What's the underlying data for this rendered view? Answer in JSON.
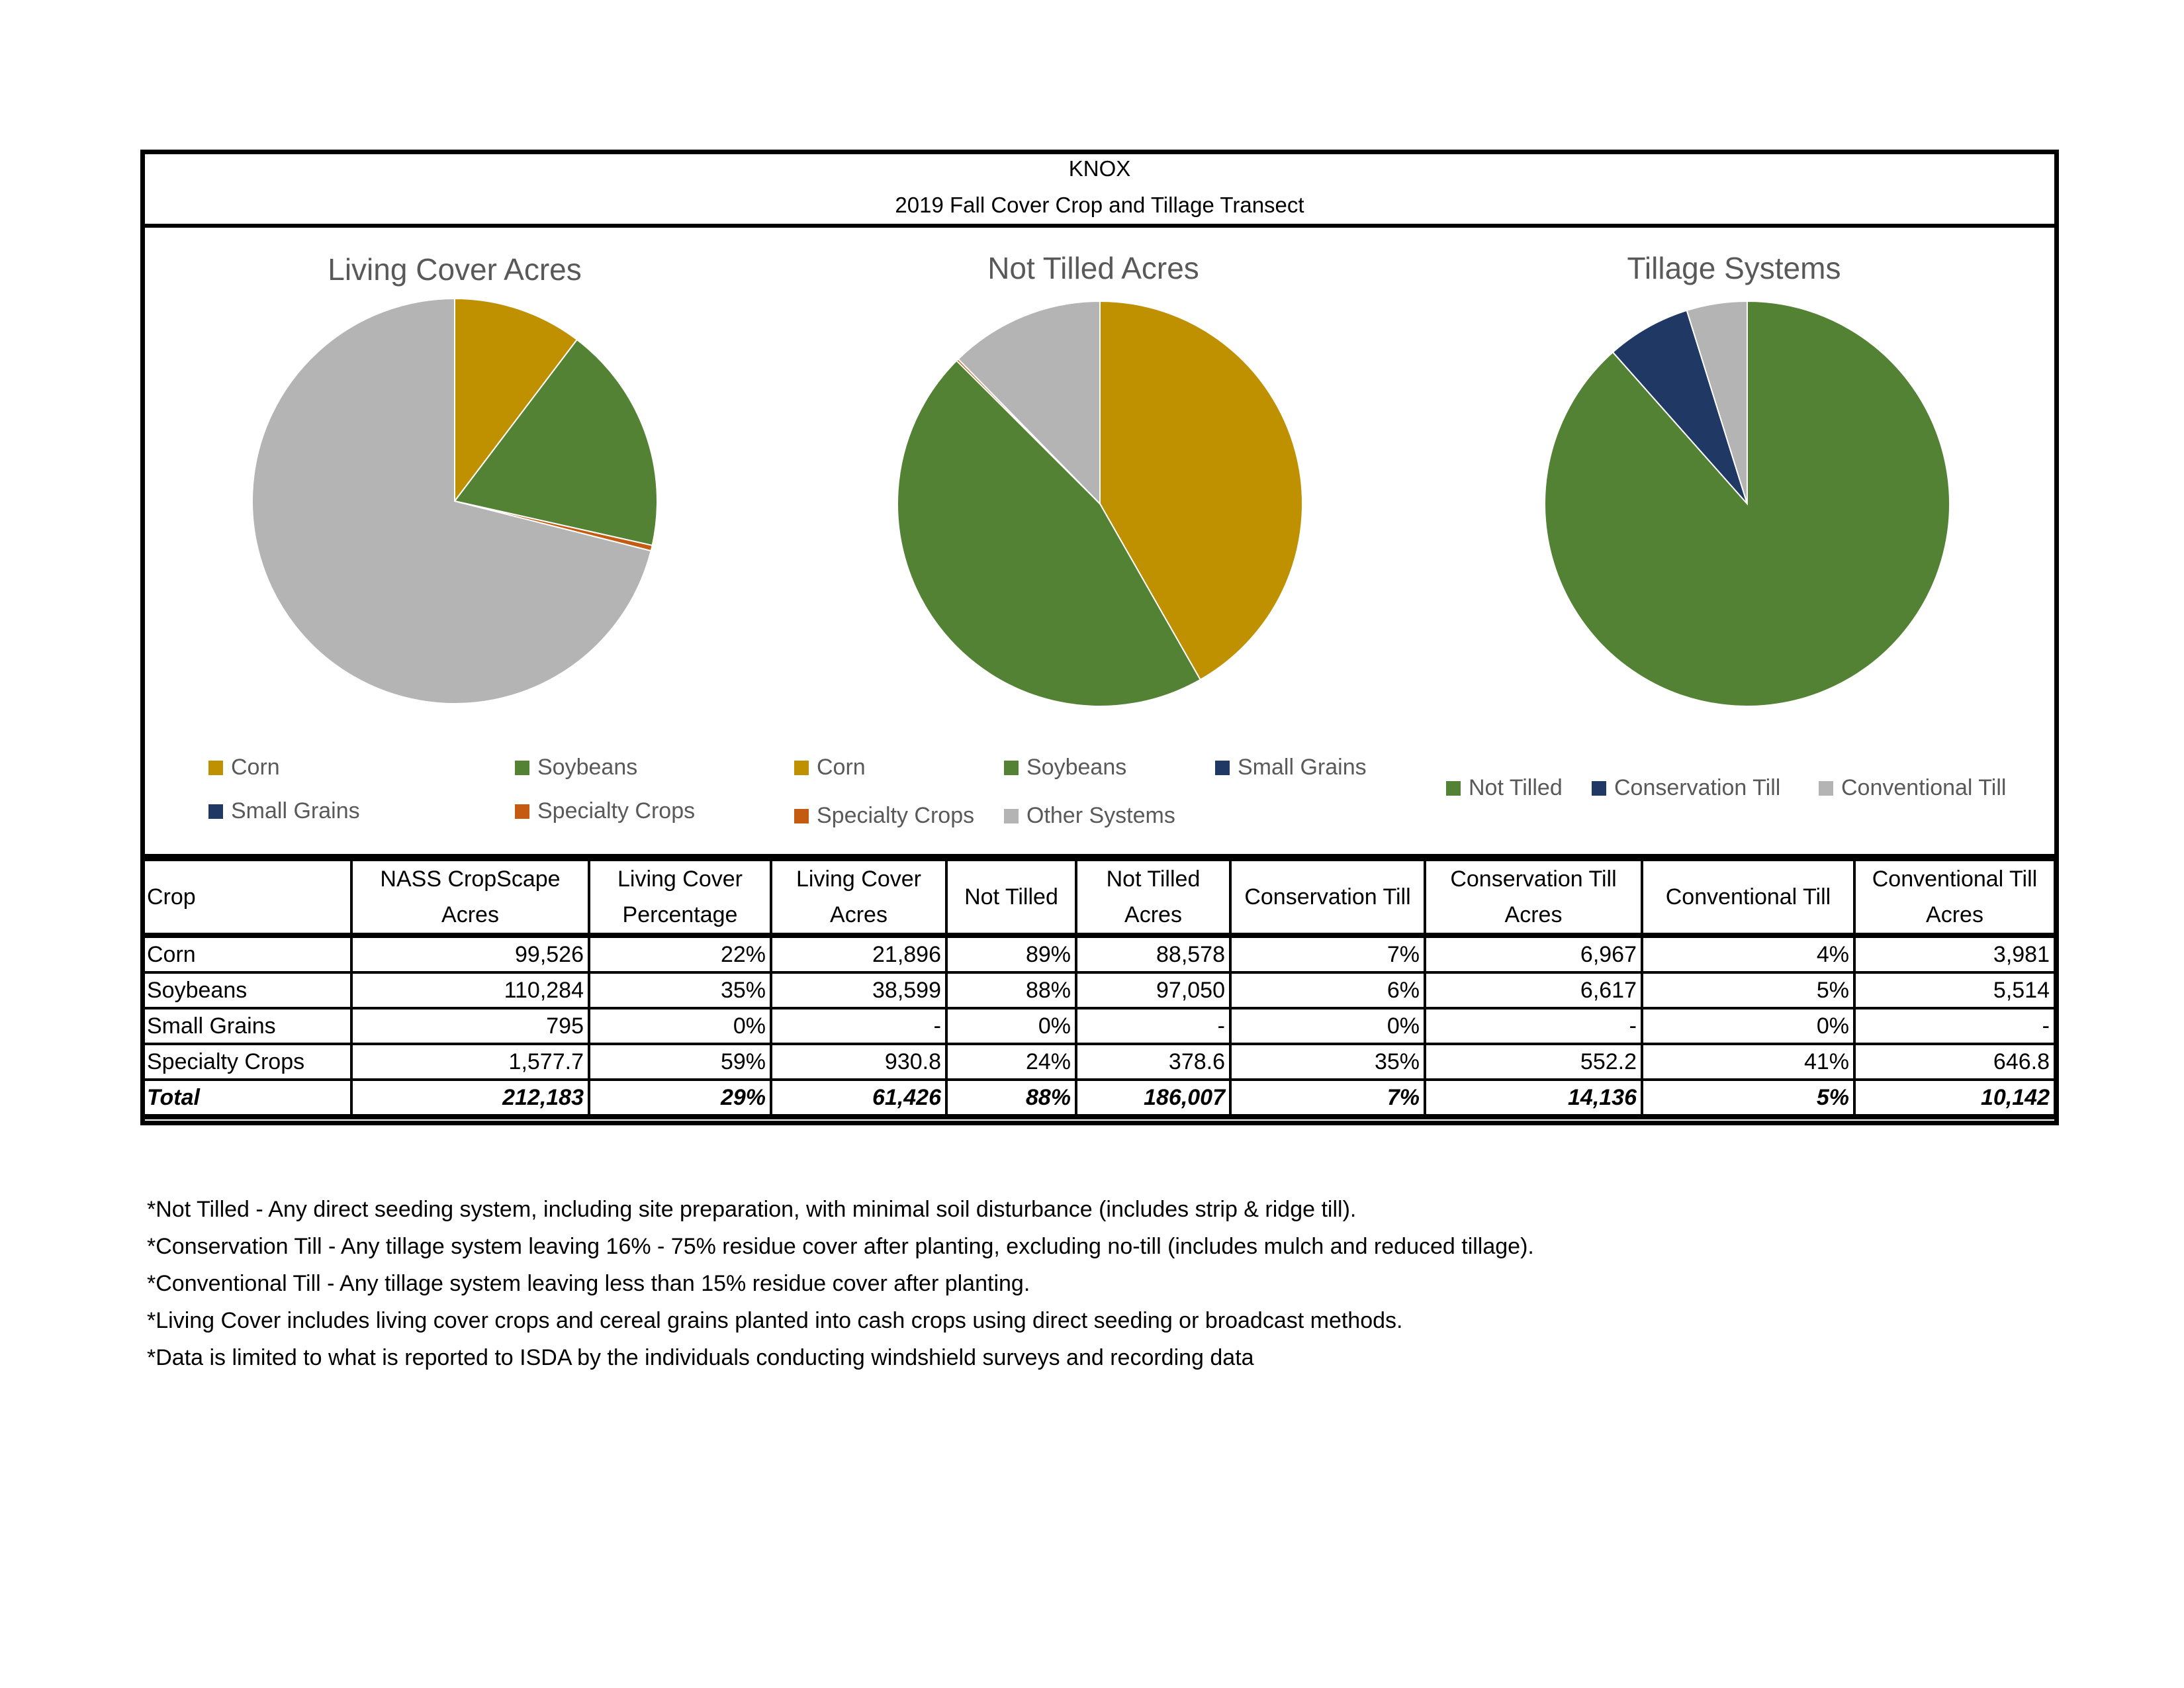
{
  "header": {
    "title": "KNOX",
    "subtitle": "2019 Fall Cover Crop and Tillage Transect"
  },
  "colors": {
    "corn": "#BF9000",
    "soybeans": "#548235",
    "small_grains": "#1F3864",
    "specialty_crops": "#C55A11",
    "other": "#B4B4B4"
  },
  "chart_data": [
    {
      "type": "pie",
      "title": "Living Cover Acres",
      "legend_position": "bottom",
      "slices": [
        {
          "name": "Corn",
          "value": 21896,
          "color": "#BF9000"
        },
        {
          "name": "Soybeans",
          "value": 38599,
          "color": "#548235"
        },
        {
          "name": "Small Grains",
          "value": 0,
          "color": "#1F3864"
        },
        {
          "name": "Specialty Crops",
          "value": 930.8,
          "color": "#C55A11"
        },
        {
          "name": "",
          "value": 150757,
          "color": "#B4B4B4"
        }
      ],
      "legend": [
        "Corn",
        "Soybeans",
        "Small Grains",
        "Specialty Crops"
      ]
    },
    {
      "type": "pie",
      "title": "Not Tilled Acres",
      "legend_position": "bottom",
      "slices": [
        {
          "name": "Corn",
          "value": 88578,
          "color": "#BF9000"
        },
        {
          "name": "Soybeans",
          "value": 97050,
          "color": "#548235"
        },
        {
          "name": "Small Grains",
          "value": 0,
          "color": "#1F3864"
        },
        {
          "name": "Specialty Crops",
          "value": 378.6,
          "color": "#C55A11"
        },
        {
          "name": "Other Systems",
          "value": 26176,
          "color": "#B4B4B4"
        }
      ],
      "legend": [
        "Corn",
        "Soybeans",
        "Small Grains",
        "Specialty Crops",
        "Other Systems"
      ]
    },
    {
      "type": "pie",
      "title": "Tillage Systems",
      "legend_position": "bottom",
      "slices": [
        {
          "name": "Not Tilled",
          "value": 186007,
          "color": "#548235"
        },
        {
          "name": "Conservation Till",
          "value": 14136,
          "color": "#1F3864"
        },
        {
          "name": "Conventional Till",
          "value": 10142,
          "color": "#B4B4B4"
        }
      ],
      "legend": [
        "Not Tilled",
        "Conservation Till",
        "Conventional Till"
      ]
    }
  ],
  "table": {
    "headers": [
      "Crop",
      "NASS CropScape Acres",
      "Living Cover Percentage",
      "Living Cover Acres",
      "Not Tilled",
      "Not Tilled Acres",
      "Conservation Till",
      "Conservation Till Acres",
      "Conventional Till",
      "Conventional Till Acres"
    ],
    "rows": [
      [
        "Corn",
        "99,526",
        "22%",
        "21,896",
        "89%",
        "88,578",
        "7%",
        "6,967",
        "4%",
        "3,981"
      ],
      [
        "Soybeans",
        "110,284",
        "35%",
        "38,599",
        "88%",
        "97,050",
        "6%",
        "6,617",
        "5%",
        "5,514"
      ],
      [
        "Small Grains",
        "795",
        "0%",
        "-",
        "0%",
        "-",
        "0%",
        "-",
        "0%",
        "-"
      ],
      [
        "Specialty Crops",
        "1,577.7",
        "59%",
        "930.8",
        "24%",
        "378.6",
        "35%",
        "552.2",
        "41%",
        "646.8"
      ]
    ],
    "total": [
      "Total",
      "212,183",
      "29%",
      "61,426",
      "88%",
      "186,007",
      "7%",
      "14,136",
      "5%",
      "10,142"
    ]
  },
  "notes": [
    "*Not Tilled - Any direct seeding system, including site preparation, with minimal soil disturbance (includes strip & ridge till).",
    "*Conservation Till - Any tillage system leaving 16% - 75% residue cover after planting, excluding no-till (includes mulch and reduced tillage).",
    "*Conventional Till - Any tillage system leaving less than 15% residue cover after planting.",
    "*Living Cover includes living cover crops and cereal grains planted into cash crops using direct seeding or broadcast methods.",
    "*Data is limited to what is reported to ISDA by the individuals conducting windshield surveys and recording data"
  ]
}
